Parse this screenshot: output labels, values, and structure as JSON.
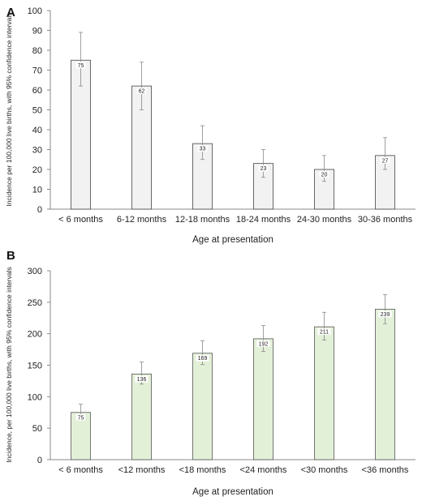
{
  "chart_data": [
    {
      "type": "bar",
      "panel_label": "A",
      "categories": [
        "< 6 months",
        "6-12 months",
        "12-18 months",
        "18-24 months",
        "24-30 months",
        "30-36 months"
      ],
      "values": [
        75,
        62,
        33,
        23,
        20,
        27
      ],
      "data_labels": [
        "75",
        "62",
        "33",
        "23",
        "20",
        "27"
      ],
      "ci_low": [
        62,
        50,
        25,
        16,
        14,
        20
      ],
      "ci_high": [
        89,
        74,
        42,
        30,
        27,
        36
      ],
      "xlabel": "Age at presentation",
      "ylabel": "Incidence per 100,000 live births, with 95% confidence intervals",
      "ylim": [
        0,
        100
      ],
      "yticks": [
        "0",
        "10",
        "20",
        "30",
        "40",
        "50",
        "60",
        "70",
        "80",
        "90",
        "100"
      ],
      "bar_fill": "#f2f2f2",
      "bar_stroke": "#444444",
      "grid": false
    },
    {
      "type": "bar",
      "panel_label": "B",
      "categories": [
        "< 6 months",
        "<12 months",
        "<18 months",
        "<24 months",
        "<30 months",
        "<36 months"
      ],
      "values": [
        75,
        136,
        169,
        192,
        211,
        239
      ],
      "data_labels": [
        "75",
        "136",
        "169",
        "192",
        "211",
        "239"
      ],
      "ci_low": [
        63,
        120,
        151,
        172,
        190,
        216
      ],
      "ci_high": [
        88,
        155,
        189,
        213,
        234,
        262
      ],
      "xlabel": "Age at presentation",
      "ylabel": "Incidence, per 100,000 live births, with 95% confidence intervals",
      "ylim": [
        0,
        300
      ],
      "yticks": [
        "0",
        "50",
        "100",
        "150",
        "200",
        "250",
        "300"
      ],
      "bar_fill": "#e3f0d8",
      "bar_stroke": "#555555",
      "grid": false
    }
  ]
}
